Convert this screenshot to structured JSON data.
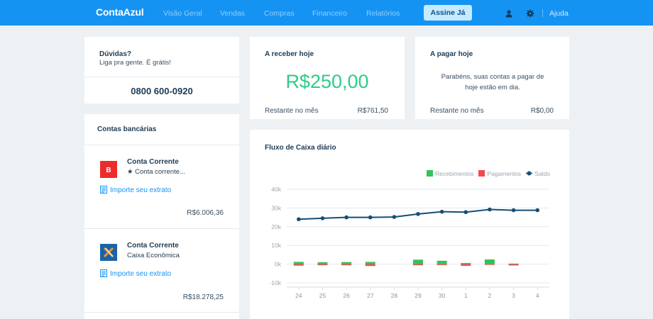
{
  "topbar": {
    "logo": "ContaAzul",
    "nav": [
      "Visão Geral",
      "Vendas",
      "Compras",
      "Financeiro",
      "Relatórios"
    ],
    "cta": "Assine Já",
    "help": "Ajuda",
    "icons": [
      "user-icon",
      "gear-icon"
    ],
    "colors": {
      "bar": "#1593f3",
      "cta_bg": "#c6eaff"
    }
  },
  "duvidas": {
    "title": "Dúvidas?",
    "subtitle": "Liga pra gente. É grátis!",
    "phone": "0800 600-0920"
  },
  "receber": {
    "title": "A receber hoje",
    "amount": "R$250,00",
    "remaining_label": "Restante no mês",
    "remaining_value": "R$761,50"
  },
  "pagar": {
    "title": "A pagar hoje",
    "message": "Parabéns, suas contas a pagar de hoje estão em dia.",
    "remaining_label": "Restante no mês",
    "remaining_value": "R$0,00"
  },
  "contas": {
    "title": "Contas bancárias",
    "items": [
      {
        "name": "Conta Corrente",
        "desc": "★ Conta corrente...",
        "import": "Importe seu extrato",
        "balance": "R$6.006,36",
        "logo": "bradesco-logo",
        "logo_color": "#ee2b2b"
      },
      {
        "name": "Conta Corrente",
        "desc": "Caixa Econômica",
        "import": "Importe seu extrato",
        "balance": "R$18.278,25",
        "logo": "caixa-logo",
        "logo_color": "#1a63a8"
      }
    ]
  },
  "fluxo": {
    "title": "Fluxo de Caixa diário",
    "legend": [
      {
        "label": "Recebimentos",
        "color": "#2fc45a"
      },
      {
        "label": "Pagamentos",
        "color": "#f2494e"
      },
      {
        "label": "Saldo",
        "color": "#154f74"
      }
    ]
  },
  "chart_data": {
    "type": "bar",
    "title": "Fluxo de Caixa diário",
    "categories": [
      "24",
      "25",
      "26",
      "27",
      "28",
      "29",
      "30",
      "1",
      "2",
      "3",
      "4"
    ],
    "y_ticks": [
      "40k",
      "30k",
      "20k",
      "10k",
      "0k",
      "-10k"
    ],
    "ylim": [
      -10000,
      40000
    ],
    "grid": true,
    "legend_position": "top-right",
    "series": [
      {
        "name": "Recebimentos",
        "type": "bar",
        "color": "#2fc45a",
        "values": [
          1200,
          1000,
          1100,
          1200,
          0,
          2400,
          1800,
          600,
          2500,
          300,
          0
        ]
      },
      {
        "name": "Pagamentos",
        "type": "bar",
        "color": "#f2494e",
        "values": [
          -800,
          -600,
          -600,
          -1000,
          0,
          -600,
          -500,
          -900,
          -400,
          -700,
          0
        ]
      },
      {
        "name": "Saldo",
        "type": "line",
        "color": "#154f74",
        "values": [
          24000,
          24500,
          25000,
          25000,
          25200,
          26800,
          28000,
          27800,
          29200,
          28800,
          28800
        ]
      }
    ]
  }
}
